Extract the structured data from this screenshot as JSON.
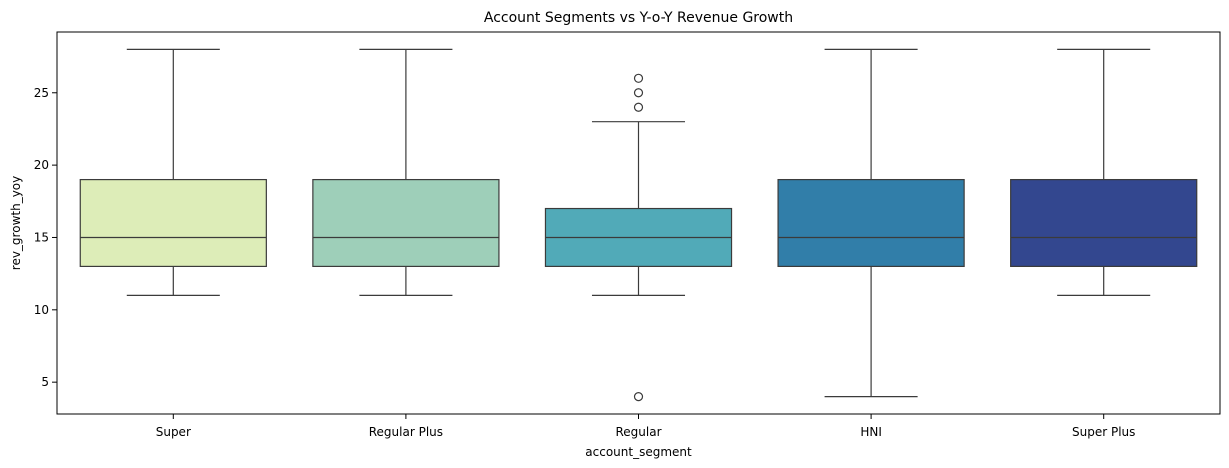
{
  "chart_data": {
    "type": "box",
    "title": "Account Segments vs Y-o-Y Revenue Growth",
    "xlabel": "account_segment",
    "ylabel": "rev_growth_yoy",
    "ylim": [
      2.8,
      29.2
    ],
    "yticks": [
      5,
      10,
      15,
      20,
      25
    ],
    "grid": false,
    "categories": [
      "Super",
      "Regular Plus",
      "Regular",
      "HNI",
      "Super Plus"
    ],
    "series": [
      {
        "category": "Super",
        "whisker_low": 11,
        "q1": 13,
        "median": 15,
        "q3": 19,
        "whisker_high": 28,
        "outliers": [],
        "color": "#ddedb8"
      },
      {
        "category": "Regular Plus",
        "whisker_low": 11,
        "q1": 13,
        "median": 15,
        "q3": 19,
        "whisker_high": 28,
        "outliers": [],
        "color": "#9ecfb9"
      },
      {
        "category": "Regular",
        "whisker_low": 11,
        "q1": 13,
        "median": 15,
        "q3": 17,
        "whisker_high": 23,
        "outliers": [
          4,
          24,
          25,
          26
        ],
        "color": "#51aab8"
      },
      {
        "category": "HNI",
        "whisker_low": 4,
        "q1": 13,
        "median": 15,
        "q3": 19,
        "whisker_high": 28,
        "outliers": [],
        "color": "#317ea9"
      },
      {
        "category": "Super Plus",
        "whisker_low": 11,
        "q1": 13,
        "median": 15,
        "q3": 19,
        "whisker_high": 28,
        "outliers": [],
        "color": "#33478f"
      }
    ]
  }
}
